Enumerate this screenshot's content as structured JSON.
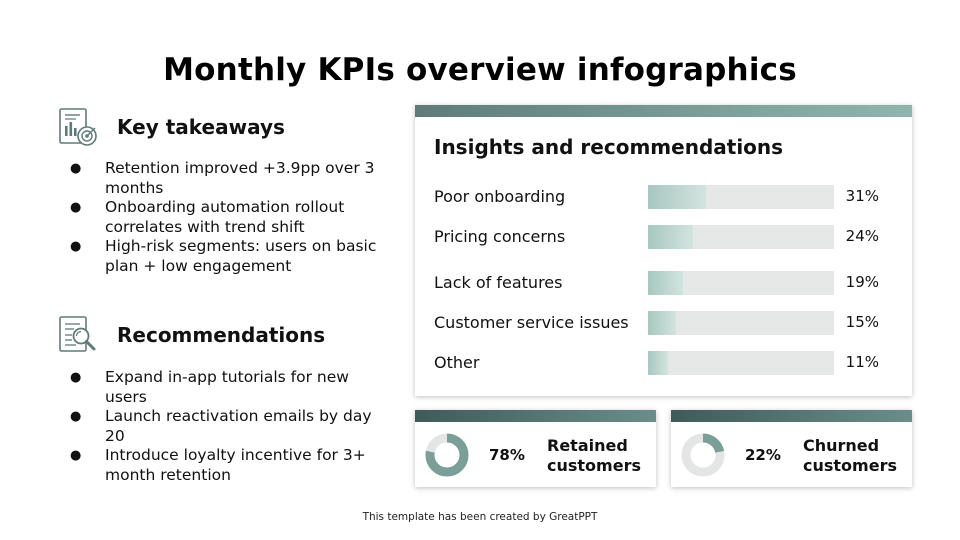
{
  "title": "Monthly KPIs overview infographics",
  "key_takeaways": {
    "icon": "report-chart-target-icon",
    "title": "Key takeaways",
    "items": [
      "Retention improved +3.9pp over 3 months",
      "Onboarding automation rollout correlates with trend shift",
      "High-risk segments: users on basic plan + low engagement"
    ]
  },
  "recommendations": {
    "icon": "document-magnifier-icon",
    "title": "Recommendations",
    "items": [
      "Expand in-app tutorials for new users",
      "Launch reactivation emails by day 20",
      "Introduce loyalty incentive for 3+ month retention"
    ]
  },
  "insights": {
    "title": "Insights and recommendations",
    "rows": [
      {
        "label": "Poor onboarding",
        "value": 31,
        "display": "31%"
      },
      {
        "label": "Pricing concerns",
        "value": 24,
        "display": "24%"
      },
      {
        "label": "Lack of features",
        "value": 19,
        "display": "19%"
      },
      {
        "label": "Customer service issues",
        "value": 15,
        "display": "15%"
      },
      {
        "label": "Other",
        "value": 11,
        "display": "11%"
      }
    ],
    "bar_scale_max": 100
  },
  "kpis": [
    {
      "value": 78,
      "display": "78%",
      "label": "Retained customers"
    },
    {
      "value": 22,
      "display": "22%",
      "label": "Churned customers"
    }
  ],
  "colors": {
    "accent_dark": "#3f5a5a",
    "accent": "#7a9e98",
    "accent_light": "#a7c7bf",
    "track": "#e5e8e7",
    "donut_track": "#e3e6e5"
  },
  "footer": "This template has been created by GreatPPT"
}
